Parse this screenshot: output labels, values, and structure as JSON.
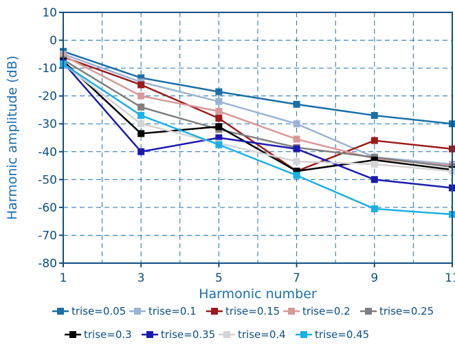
{
  "chart_data": {
    "type": "line",
    "title": "",
    "xlabel": "Harmonic number",
    "ylabel": "Harmonic amplitude (dB)",
    "xlim": [
      1,
      11
    ],
    "ylim": [
      -80,
      10
    ],
    "x_ticks": [
      1,
      3,
      5,
      7,
      9,
      11
    ],
    "x_tick_labels": [
      "1",
      "3",
      "5",
      "7",
      "9",
      "11"
    ],
    "y_ticks": [
      10,
      0,
      -10,
      -20,
      -30,
      -40,
      -50,
      -60,
      -70,
      -80
    ],
    "y_tick_labels": [
      "10",
      "0",
      "-10",
      "-20",
      "-30",
      "-40",
      "-50",
      "-60",
      "-70",
      "-80"
    ],
    "grid": true,
    "legend_position": "bottom",
    "x": [
      1,
      3,
      5,
      7,
      9,
      11
    ],
    "series": [
      {
        "name": "trise=0.05",
        "color": "#1a6fa8",
        "values": [
          -4,
          -13.5,
          -18.5,
          -23,
          -27,
          -30
        ]
      },
      {
        "name": "trise=0.1",
        "color": "#9ab3d6",
        "values": [
          -5,
          -15,
          -22,
          -30,
          -42,
          -44.5
        ]
      },
      {
        "name": "trise=0.15",
        "color": "#9b1b1b",
        "values": [
          -6,
          -16,
          -28,
          -47,
          -36,
          -39
        ]
      },
      {
        "name": "trise=0.2",
        "color": "#d99898",
        "values": [
          -5.5,
          -20,
          -25.5,
          -35.5,
          -42.5,
          -45
        ]
      },
      {
        "name": "trise=0.25",
        "color": "#7f7f7f",
        "values": [
          -7,
          -24,
          -32,
          -38.5,
          -42,
          -45.5
        ]
      },
      {
        "name": "trise=0.3",
        "color": "#000000",
        "values": [
          -7.5,
          -33.5,
          -31,
          -47,
          -43,
          -46.5
        ]
      },
      {
        "name": "trise=0.35",
        "color": "#1a1ab0",
        "values": [
          -8,
          -40,
          -35,
          -39,
          -50,
          -53
        ]
      },
      {
        "name": "trise=0.4",
        "color": "#d4d4d4",
        "values": [
          -8.5,
          -30,
          -37,
          -43.5,
          -44.5,
          -47
        ]
      },
      {
        "name": "trise=0.45",
        "color": "#1ab0e8",
        "values": [
          -8.5,
          -27,
          -37.5,
          -48.5,
          -60.5,
          -62.5
        ]
      }
    ]
  }
}
